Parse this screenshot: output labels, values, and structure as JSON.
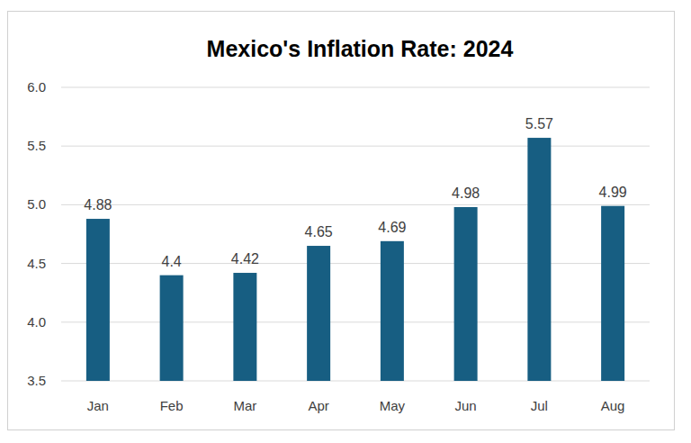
{
  "chart_data": {
    "type": "bar",
    "title": "Mexico's Inflation Rate: 2024",
    "categories": [
      "Jan",
      "Feb",
      "Mar",
      "Apr",
      "May",
      "Jun",
      "Jul",
      "Aug"
    ],
    "values": [
      4.88,
      4.4,
      4.42,
      4.65,
      4.69,
      4.98,
      5.57,
      4.99
    ],
    "color": "#175e82",
    "ylim": [
      3.5,
      6.0
    ],
    "yticks": [
      3.5,
      {
        "value": 4.0,
        "label": "4.0"
      },
      {
        "value": 4.5,
        "label": "4.5"
      },
      {
        "value": 5.0,
        "label": "5.0"
      },
      5.5,
      {
        "value": 6.0,
        "label": "6.0"
      }
    ],
    "grid": true,
    "data_labels": true
  }
}
